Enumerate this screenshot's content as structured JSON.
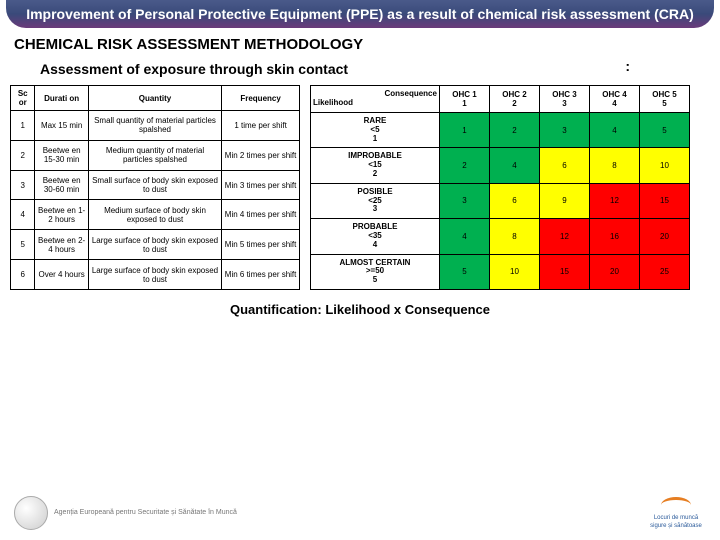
{
  "title": "Improvement of Personal Protective Equipment (PPE) as a result of chemical risk assessment (CRA)",
  "section": "CHEMICAL RISK ASSESSMENT METHODOLOGY",
  "subsection": "Assessment of exposure through skin contact",
  "left": {
    "headers": [
      "Sc or",
      "Durati on",
      "Quantity",
      "Frequency"
    ],
    "rows": [
      [
        "1",
        "Max 15 min",
        "Small quantity of material particles spalshed",
        "1 time per shift"
      ],
      [
        "2",
        "Beetwe en 15-30 min",
        "Medium quantity of material particles spalshed",
        "Min 2 times per shift"
      ],
      [
        "3",
        "Beetwe en 30-60 min",
        "Small surface of body skin exposed to dust",
        "Min 3 times per shift"
      ],
      [
        "4",
        "Beetwe en 1-2 hours",
        "Medium surface of body skin exposed to dust",
        "Min 4 times per shift"
      ],
      [
        "5",
        "Beetwe en 2-4 hours",
        "Large surface of body skin exposed to dust",
        "Min 5 times per shift"
      ],
      [
        "6",
        "Over 4 hours",
        "Large surface of body skin exposed to dust",
        "Min 6 times per shift"
      ]
    ]
  },
  "right": {
    "corner_top": "Consequence",
    "corner_left": "Likelihood",
    "cols": [
      {
        "l1": "OHC 1",
        "l2": "1"
      },
      {
        "l1": "OHC 2",
        "l2": "2"
      },
      {
        "l1": "OHC 3",
        "l2": "3"
      },
      {
        "l1": "OHC 4",
        "l2": "4"
      },
      {
        "l1": "OHC 5",
        "l2": "5"
      }
    ],
    "rows": [
      {
        "label": "RARE",
        "sub": "<5",
        "n": "1",
        "cells": [
          {
            "v": "1",
            "c": "g"
          },
          {
            "v": "2",
            "c": "g"
          },
          {
            "v": "3",
            "c": "g"
          },
          {
            "v": "4",
            "c": "g"
          },
          {
            "v": "5",
            "c": "g"
          }
        ]
      },
      {
        "label": "IMPROBABLE",
        "sub": "<15",
        "n": "2",
        "cells": [
          {
            "v": "2",
            "c": "g"
          },
          {
            "v": "4",
            "c": "g"
          },
          {
            "v": "6",
            "c": "y"
          },
          {
            "v": "8",
            "c": "y"
          },
          {
            "v": "10",
            "c": "y"
          }
        ]
      },
      {
        "label": "POSIBLE",
        "sub": "<25",
        "n": "3",
        "cells": [
          {
            "v": "3",
            "c": "g"
          },
          {
            "v": "6",
            "c": "y"
          },
          {
            "v": "9",
            "c": "y"
          },
          {
            "v": "12",
            "c": "r"
          },
          {
            "v": "15",
            "c": "r"
          }
        ]
      },
      {
        "label": "PROBABLE",
        "sub": "<35",
        "n": "4",
        "cells": [
          {
            "v": "4",
            "c": "g"
          },
          {
            "v": "8",
            "c": "y"
          },
          {
            "v": "12",
            "c": "r"
          },
          {
            "v": "16",
            "c": "r"
          },
          {
            "v": "20",
            "c": "r"
          }
        ]
      },
      {
        "label": "ALMOST CERTAIN",
        "sub": ">=50",
        "n": "5",
        "cells": [
          {
            "v": "5",
            "c": "g"
          },
          {
            "v": "10",
            "c": "y"
          },
          {
            "v": "15",
            "c": "r"
          },
          {
            "v": "20",
            "c": "r"
          },
          {
            "v": "25",
            "c": "r"
          }
        ]
      }
    ]
  },
  "caption": "Quantification: Likelihood x Consequence",
  "badge": "Agenția Europeană pentru Securitate și Sănătate în Muncă",
  "footer_right_1": "Locuri de muncă",
  "footer_right_2": "sigure și sănătoase"
}
